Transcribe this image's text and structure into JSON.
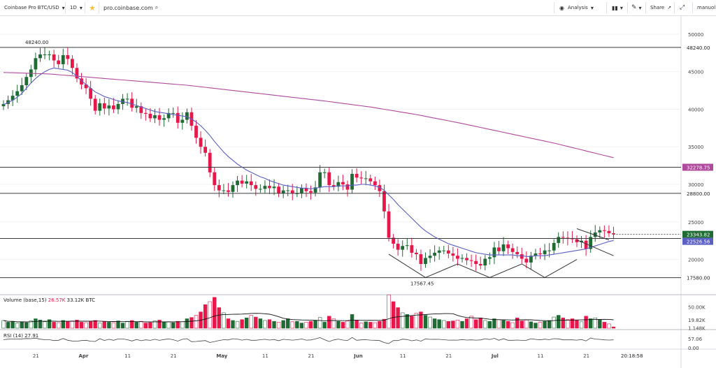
{
  "toolbar": {
    "symbol": "Coinbase Pro BTC/USD",
    "interval": "1D",
    "url": "pro.coinbase.com",
    "analysis": "Analysis",
    "share": "Share",
    "user": "manuol"
  },
  "chart_data": {
    "type": "candlestick",
    "ylim": [
      15500,
      52500
    ],
    "price_ticks": [
      "50000",
      "45000",
      "40000",
      "35000",
      "30000",
      "25000",
      "20000"
    ],
    "price_tick_values": [
      50000,
      45000,
      40000,
      35000,
      30000,
      25000,
      20000
    ],
    "date_ticks": [
      "21",
      "Apr",
      "11",
      "21",
      "May",
      "11",
      "21",
      "Jun",
      "11",
      "21",
      "Jul",
      "11",
      "21"
    ],
    "date_tick_index": [
      7,
      17,
      27,
      37,
      47,
      57,
      67,
      77,
      87,
      97,
      107,
      117,
      127
    ],
    "horizontal_levels": [
      {
        "value": 48240,
        "label": "48240.00",
        "box": "48240.00"
      },
      {
        "value": 32278.75,
        "label": "",
        "box": "32278.75"
      },
      {
        "value": 28800,
        "label": "",
        "box": "28800.00"
      },
      {
        "value": 22800,
        "label": "",
        "box": ""
      },
      {
        "value": 17580,
        "label": "17567.45",
        "box": "17580.00"
      }
    ],
    "current_price_box": "23343.82",
    "ma_box": "22526.56",
    "high_annotation": "48240.00",
    "low_annotation": "17567.45",
    "closes": [
      40700,
      41200,
      41800,
      42400,
      43200,
      44300,
      45300,
      46800,
      47300,
      47300,
      47300,
      46500,
      46000,
      47200,
      46700,
      45500,
      44100,
      43300,
      42800,
      41400,
      39800,
      40800,
      40100,
      40500,
      40000,
      40700,
      41400,
      41400,
      40200,
      40400,
      39500,
      39400,
      38800,
      39200,
      38600,
      38800,
      39500,
      39500,
      38200,
      38600,
      39600,
      37800,
      36200,
      35000,
      34200,
      31600,
      29900,
      29200,
      29200,
      29000,
      29900,
      30500,
      30100,
      30400,
      29900,
      29400,
      29400,
      29800,
      29500,
      29700,
      28800,
      29200,
      29200,
      28800,
      28800,
      29500,
      29100,
      28900,
      29600,
      31600,
      31600,
      29900,
      29700,
      30300,
      30000,
      29300,
      31400,
      30900,
      30800,
      30800,
      30400,
      29900,
      29100,
      26400,
      22900,
      22100,
      21300,
      21800,
      21900,
      20900,
      20700,
      19400,
      20200,
      20500,
      20900,
      21200,
      21200,
      20800,
      20500,
      20100,
      20200,
      19900,
      19800,
      19400,
      19200,
      20100,
      20300,
      21600,
      21100,
      22000,
      21500,
      21000,
      20700,
      20100,
      19600,
      20500,
      20800,
      20700,
      21200,
      21200,
      22200,
      23000,
      22900,
      22800,
      22700,
      22300,
      22500,
      21400,
      23000,
      23600,
      23900,
      23800,
      23500,
      23343.82
    ],
    "ma20": [
      40600,
      40900,
      41200,
      41600,
      42100,
      42800,
      43500,
      44100,
      44600,
      45000,
      45300,
      45500,
      45400,
      45300,
      45200,
      44900,
      44400,
      43800,
      43300,
      42800,
      42300,
      42000,
      41700,
      41500,
      41300,
      41100,
      41000,
      40900,
      40700,
      40500,
      40300,
      40100,
      39900,
      39700,
      39600,
      39500,
      39400,
      39300,
      39200,
      39100,
      39000,
      38700,
      38300,
      37800,
      37200,
      36500,
      35700,
      35000,
      34300,
      33700,
      33200,
      32700,
      32300,
      31900,
      31600,
      31300,
      31000,
      30800,
      30500,
      30300,
      30100,
      29900,
      29800,
      29700,
      29600,
      29500,
      29500,
      29400,
      29500,
      29600,
      29700,
      29700,
      29700,
      29800,
      29800,
      29800,
      29900,
      29900,
      30000,
      30000,
      29900,
      29800,
      29600,
      29200,
      28600,
      28000,
      27300,
      26700,
      26100,
      25500,
      24900,
      24300,
      23800,
      23400,
      23000,
      22700,
      22400,
      22100,
      21900,
      21700,
      21500,
      21300,
      21100,
      20900,
      20800,
      20700,
      20600,
      20600,
      20600,
      20600,
      20600,
      20600,
      20500,
      20500,
      20400,
      20400,
      20500,
      20500,
      20500,
      20600,
      20700,
      20800,
      20900,
      21000,
      21100,
      21200,
      21300,
      21400,
      21600,
      21800,
      22000,
      22200,
      22400,
      22526.56
    ],
    "ma200": [
      44900,
      44880,
      44860,
      44840,
      44820,
      44800,
      44780,
      44760,
      44740,
      44720,
      44700,
      44650,
      44600,
      44550,
      44500,
      44450,
      44400,
      44350,
      44300,
      44250,
      44200,
      44150,
      44100,
      44050,
      44000,
      43950,
      43900,
      43850,
      43800,
      43750,
      43700,
      43650,
      43600,
      43550,
      43500,
      43450,
      43400,
      43350,
      43300,
      43250,
      43200,
      43130,
      43060,
      42990,
      42920,
      42850,
      42780,
      42710,
      42640,
      42570,
      42500,
      42430,
      42360,
      42290,
      42220,
      42150,
      42080,
      42010,
      41940,
      41870,
      41800,
      41730,
      41660,
      41590,
      41520,
      41450,
      41380,
      41310,
      41240,
      41170,
      41100,
      41020,
      40940,
      40860,
      40780,
      40700,
      40620,
      40540,
      40460,
      40380,
      40300,
      40200,
      40100,
      40000,
      39900,
      39800,
      39700,
      39600,
      39500,
      39400,
      39300,
      39180,
      39060,
      38940,
      38820,
      38700,
      38580,
      38460,
      38340,
      38220,
      38100,
      37970,
      37840,
      37710,
      37580,
      37450,
      37320,
      37190,
      37060,
      36930,
      36800,
      36670,
      36540,
      36410,
      36280,
      36150,
      36020,
      35890,
      35760,
      35630,
      35500,
      35350,
      35200,
      35050,
      34900,
      34750,
      34600,
      34450,
      34300,
      34150,
      34000,
      33850,
      33700,
      33550
    ],
    "volume_label": "Volume (base,15)",
    "volume_value": "26.57K",
    "volume_ma": "33.12K BTC",
    "volume_ticks": [
      "50.00K",
      "19.82K",
      "1.148K"
    ],
    "volume_tick_values": [
      50000,
      19820,
      1148
    ],
    "volume_max": 75000,
    "volumes": [
      18000,
      14000,
      16000,
      12000,
      15000,
      13000,
      17000,
      22000,
      19000,
      15000,
      20000,
      14000,
      13000,
      18000,
      16000,
      17000,
      19000,
      14000,
      13000,
      16000,
      18000,
      12000,
      15000,
      14000,
      13000,
      17000,
      12000,
      16000,
      18000,
      14000,
      16000,
      12000,
      13000,
      17000,
      19000,
      14000,
      15000,
      13000,
      16000,
      15000,
      22000,
      25000,
      30000,
      38000,
      55000,
      62000,
      72000,
      48000,
      36000,
      22000,
      18000,
      16000,
      20000,
      24000,
      30000,
      26000,
      22000,
      18000,
      20000,
      16000,
      14000,
      18000,
      22000,
      15000,
      16000,
      12000,
      14000,
      16000,
      18000,
      25000,
      14000,
      28000,
      22000,
      16000,
      14000,
      17000,
      32000,
      19000,
      12000,
      15000,
      14000,
      13000,
      16000,
      21000,
      78000,
      62000,
      48000,
      36000,
      32000,
      28000,
      35000,
      38000,
      30000,
      26000,
      22000,
      20000,
      18000,
      16000,
      17000,
      19000,
      16000,
      22000,
      28000,
      20000,
      24000,
      18000,
      16000,
      22000,
      20000,
      18000,
      16000,
      13000,
      24000,
      17000,
      20000,
      15000,
      12000,
      14000,
      16000,
      18000,
      26000,
      30000,
      24000,
      20000,
      22000,
      18000,
      15000,
      28000,
      22000,
      24000,
      20000,
      14000,
      10000,
      3000
    ],
    "rsi_label": "RSI (14)",
    "rsi_value": "27.91",
    "rsi_ticks": [
      "57.06",
      "0.00"
    ],
    "rsi_tick_values": [
      57.06,
      0
    ],
    "time_label": "20:18:58"
  }
}
